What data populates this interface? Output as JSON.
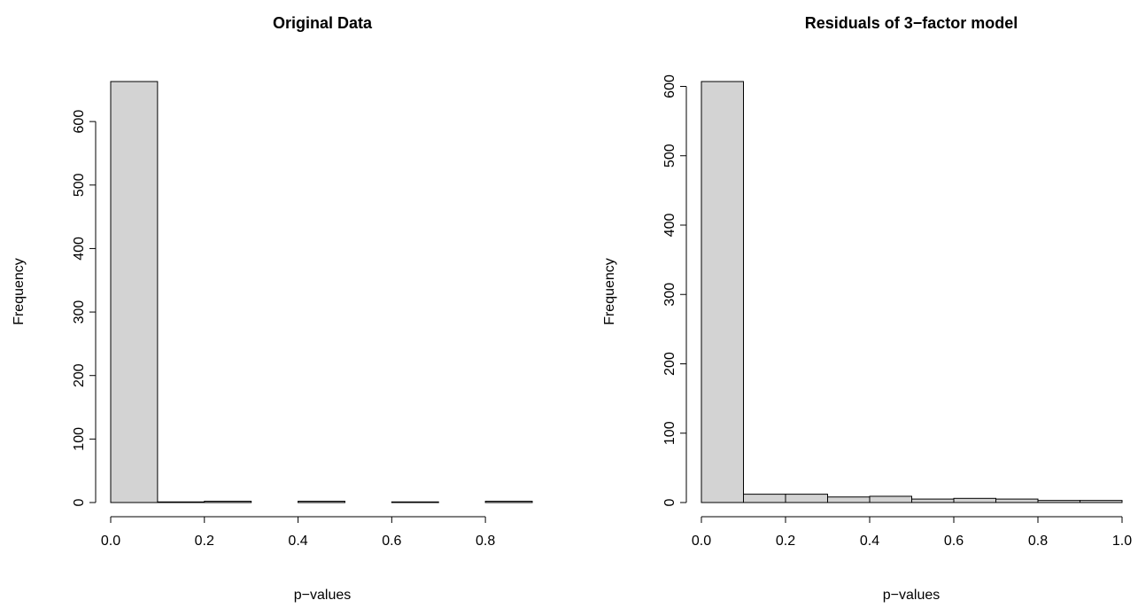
{
  "chart_data": [
    {
      "type": "bar",
      "title": "Original Data",
      "xlabel": "p−values",
      "ylabel": "Frequency",
      "bin_edges": [
        0.0,
        0.1,
        0.2,
        0.3,
        0.4,
        0.5,
        0.6,
        0.7,
        0.8,
        0.9
      ],
      "values": [
        663,
        1,
        2,
        0,
        2,
        0,
        1,
        0,
        2
      ],
      "xlim": [
        0.0,
        0.9
      ],
      "ylim": [
        0,
        663
      ],
      "xticks": [
        0.0,
        0.2,
        0.4,
        0.6,
        0.8
      ],
      "xtick_labels": [
        "0.0",
        "0.2",
        "0.4",
        "0.6",
        "0.8"
      ],
      "yticks": [
        0,
        100,
        200,
        300,
        400,
        500,
        600
      ],
      "ytick_labels": [
        "0",
        "100",
        "200",
        "300",
        "400",
        "500",
        "600"
      ],
      "bar_fill": "#d3d3d3",
      "grid": false
    },
    {
      "type": "bar",
      "title": "Residuals of 3−factor model",
      "xlabel": "p−values",
      "ylabel": "Frequency",
      "bin_edges": [
        0.0,
        0.1,
        0.2,
        0.3,
        0.4,
        0.5,
        0.6,
        0.7,
        0.8,
        0.9,
        1.0
      ],
      "values": [
        607,
        12,
        12,
        8,
        9,
        5,
        6,
        5,
        3,
        3
      ],
      "xlim": [
        0.0,
        1.0
      ],
      "ylim": [
        0,
        607
      ],
      "xticks": [
        0.0,
        0.2,
        0.4,
        0.6,
        0.8,
        1.0
      ],
      "xtick_labels": [
        "0.0",
        "0.2",
        "0.4",
        "0.6",
        "0.8",
        "1.0"
      ],
      "yticks": [
        0,
        100,
        200,
        300,
        400,
        500,
        600
      ],
      "ytick_labels": [
        "0",
        "100",
        "200",
        "300",
        "400",
        "500",
        "600"
      ],
      "bar_fill": "#d3d3d3",
      "grid": false
    }
  ]
}
